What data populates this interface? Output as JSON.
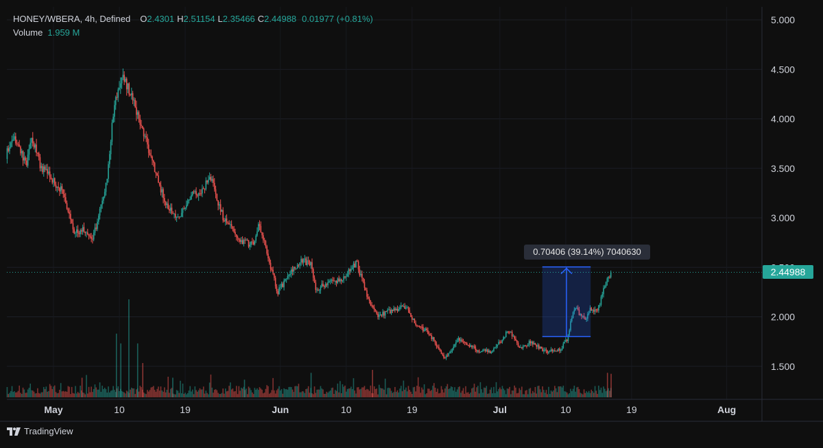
{
  "legend": {
    "symbol": "HONEY/WBERA, 4h, Defined",
    "o_label": "O",
    "o_value": "2.4301",
    "h_label": "H",
    "h_value": "2.51154",
    "l_label": "L",
    "l_value": "2.35466",
    "c_label": "C",
    "c_value": "2.44988",
    "change": "0.01977 (+0.81%)",
    "volume_label": "Volume",
    "volume_value": "1.959 M"
  },
  "measure": {
    "label": "0.70406 (39.14%) 7040630"
  },
  "last_price": "2.44988",
  "brand": "TradingView",
  "colors": {
    "up": "#26a69a",
    "down": "#ef5350",
    "measure": "#2962ff",
    "background": "#0f0f0f"
  },
  "chart_data": {
    "type": "candlestick",
    "title": "HONEY/WBERA, 4h, Defined",
    "y_ticks": [
      "5.000",
      "4.500",
      "4.000",
      "3.500",
      "3.000",
      "2.500",
      "2.000",
      "1.500"
    ],
    "ylim": [
      1.18,
      5.1
    ],
    "x_ticks": [
      {
        "label": "May",
        "day": 0,
        "bold": true
      },
      {
        "label": "10",
        "day": 9,
        "bold": false
      },
      {
        "label": "19",
        "day": 18,
        "bold": false
      },
      {
        "label": "Jun",
        "day": 31,
        "bold": true
      },
      {
        "label": "10",
        "day": 40,
        "bold": false
      },
      {
        "label": "19",
        "day": 49,
        "bold": false
      },
      {
        "label": "Jul",
        "day": 61,
        "bold": true
      },
      {
        "label": "10",
        "day": 70,
        "bold": false
      },
      {
        "label": "19",
        "day": 79,
        "bold": false
      },
      {
        "label": "Aug",
        "day": 92,
        "bold": true
      }
    ],
    "last_close": 2.44988,
    "measure_range": {
      "from_price": 1.8,
      "to_price": 2.50406,
      "from_day": 66.8,
      "to_day": 73.4
    },
    "price_path": [
      [
        -6.5,
        3.6
      ],
      [
        -5.5,
        3.82
      ],
      [
        -4.5,
        3.7
      ],
      [
        -3.6,
        3.52
      ],
      [
        -2.8,
        3.82
      ],
      [
        -1.6,
        3.52
      ],
      [
        -0.4,
        3.42
      ],
      [
        1.5,
        3.25
      ],
      [
        3.1,
        2.85
      ],
      [
        4.6,
        2.88
      ],
      [
        5.4,
        2.75
      ],
      [
        6.3,
        3.0
      ],
      [
        7.4,
        3.35
      ],
      [
        8.4,
        4.1
      ],
      [
        9.7,
        4.45
      ],
      [
        10.4,
        4.3
      ],
      [
        11.6,
        4.05
      ],
      [
        12.5,
        3.85
      ],
      [
        13.8,
        3.55
      ],
      [
        15.2,
        3.2
      ],
      [
        16.4,
        3.05
      ],
      [
        17.2,
        2.98
      ],
      [
        19.0,
        3.22
      ],
      [
        20.3,
        3.28
      ],
      [
        21.8,
        3.4
      ],
      [
        22.3,
        3.22
      ],
      [
        23.4,
        3.0
      ],
      [
        25.6,
        2.78
      ],
      [
        27.4,
        2.72
      ],
      [
        28.2,
        2.95
      ],
      [
        29.5,
        2.6
      ],
      [
        30.8,
        2.25
      ],
      [
        32.6,
        2.45
      ],
      [
        34.0,
        2.58
      ],
      [
        35.4,
        2.52
      ],
      [
        36.0,
        2.27
      ],
      [
        37.8,
        2.35
      ],
      [
        39.7,
        2.38
      ],
      [
        41.6,
        2.55
      ],
      [
        42.4,
        2.35
      ],
      [
        43.5,
        2.1
      ],
      [
        44.5,
        2.02
      ],
      [
        46.0,
        2.05
      ],
      [
        47.2,
        2.08
      ],
      [
        48.3,
        2.1
      ],
      [
        49.8,
        1.9
      ],
      [
        51.4,
        1.85
      ],
      [
        52.8,
        1.68
      ],
      [
        53.6,
        1.58
      ],
      [
        54.6,
        1.67
      ],
      [
        55.3,
        1.78
      ],
      [
        56.9,
        1.72
      ],
      [
        58.2,
        1.65
      ],
      [
        59.8,
        1.65
      ],
      [
        61.4,
        1.75
      ],
      [
        62.3,
        1.87
      ],
      [
        64.0,
        1.68
      ],
      [
        65.4,
        1.75
      ],
      [
        67.0,
        1.66
      ],
      [
        68.3,
        1.65
      ],
      [
        69.5,
        1.68
      ],
      [
        70.4,
        1.78
      ],
      [
        71.1,
        2.05
      ],
      [
        71.6,
        2.12
      ],
      [
        72.2,
        2.0
      ],
      [
        72.8,
        1.98
      ],
      [
        73.6,
        2.08
      ],
      [
        74.5,
        2.05
      ],
      [
        75.2,
        2.25
      ],
      [
        76.3,
        2.45
      ]
    ],
    "volume_spikes": [
      {
        "day": 10.3,
        "volume": 1.0
      },
      {
        "day": 8.6,
        "volume": 0.65
      },
      {
        "day": 9.2,
        "volume": 0.55
      },
      {
        "day": 11.5,
        "volume": 0.55
      },
      {
        "day": 12.2,
        "volume": 0.35
      },
      {
        "day": 43.6,
        "volume": 0.28
      },
      {
        "day": 35.2,
        "volume": 0.25
      },
      {
        "day": 75.7,
        "volume": 0.25
      },
      {
        "day": 76.2,
        "volume": 0.24
      },
      {
        "day": 16.3,
        "volume": 0.2
      },
      {
        "day": 26.1,
        "volume": 0.18
      },
      {
        "day": 3.9,
        "volume": 0.2
      }
    ]
  }
}
